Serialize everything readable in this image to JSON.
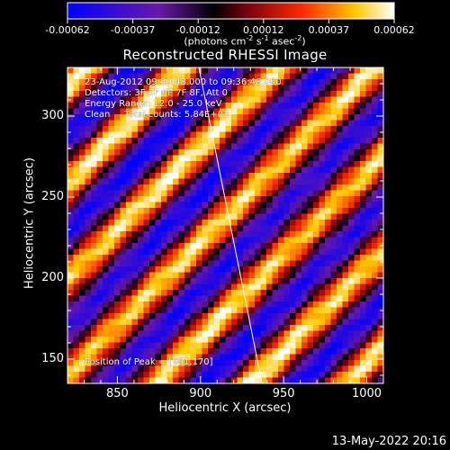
{
  "colorbar": {
    "tick_labels": [
      "-0.00062",
      "-0.00037",
      "-0.00012",
      "0.00012",
      "0.00037",
      "0.00062"
    ],
    "unit_label": "(photons cm<sup>-2</sup> s<sup>-1</sup> asec<sup>-2</sup>)",
    "range": [
      -0.00062,
      0.00062
    ]
  },
  "title": "Reconstructed RHESSI Image",
  "info": {
    "line1": "23-Aug-2012 09:30:48.000 to 09:36:48.000",
    "line2": "Detectors: 3F 5F 6F 7F 8F, Att 0",
    "line3": "Energy Range: 12.0 - 25.0 keV",
    "line4": "Clean     Total counts: 5.84E+03"
  },
  "peak_label": "Position of Peak = [981,170]",
  "footer": "13-May-2022 20:16",
  "chart_data": {
    "type": "heatmap",
    "title": "Reconstructed RHESSI Image",
    "xlabel": "Heliocentric X (arcsec)",
    "ylabel": "Heliocentric Y (arcsec)",
    "xlim": [
      820,
      1010
    ],
    "ylim": [
      135,
      330
    ],
    "x_ticks": [
      850,
      900,
      950,
      1000
    ],
    "y_ticks": [
      150,
      200,
      250,
      300
    ],
    "colormap": "blue-purple-red-yellow-white",
    "pattern": {
      "description_values": "diagonal fringe pattern running from upper-left to lower-right",
      "peak": [
        981,
        170
      ],
      "max_value": 0.00062,
      "min_value": -0.00062
    },
    "solar_limb": [
      [
        899,
        330
      ],
      [
        937,
        135
      ]
    ]
  }
}
